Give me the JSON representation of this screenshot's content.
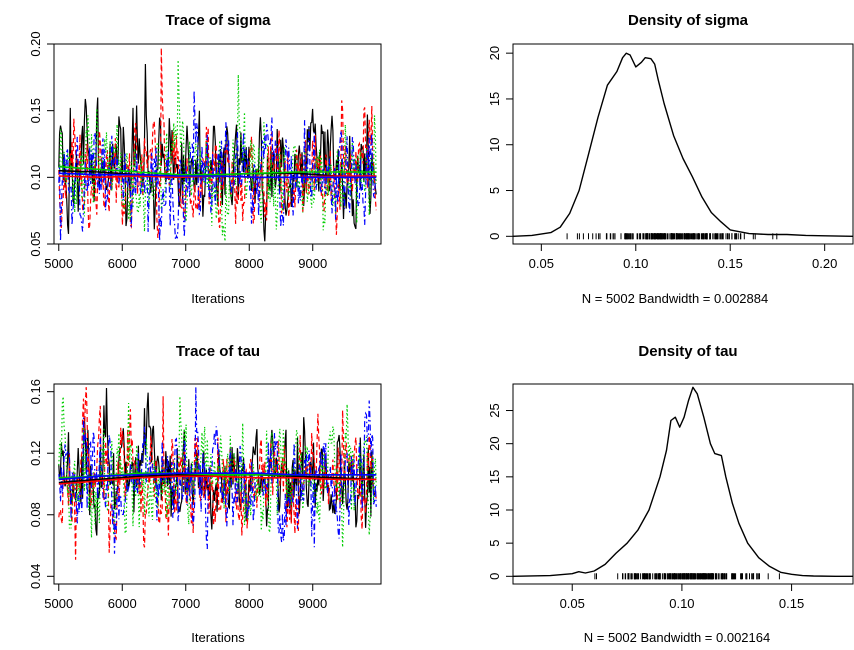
{
  "chart_data": [
    {
      "type": "line",
      "title": "Trace of sigma",
      "xlabel": "Iterations",
      "ylabel": "",
      "xlim": [
        5000,
        10000
      ],
      "ylim": [
        0.05,
        0.2
      ],
      "xticks": [
        "5000",
        "6000",
        "7000",
        "8000",
        "9000"
      ],
      "yticks": [
        "0.05",
        "0.10",
        "0.15",
        "0.20"
      ],
      "n_iterations": 5000,
      "series": [
        {
          "color": "#000000",
          "dash": "solid",
          "mean": 0.104,
          "sd": 0.02,
          "max": 0.185,
          "smooth": [
            0.105,
            0.104,
            0.102,
            0.101,
            0.102,
            0.103,
            0.103,
            0.101,
            0.1
          ]
        },
        {
          "color": "#ff0000",
          "dash": "dashed",
          "mean": 0.101,
          "sd": 0.02,
          "max": 0.197,
          "smooth": [
            0.101,
            0.1,
            0.101,
            0.1,
            0.101,
            0.1,
            0.1,
            0.101,
            0.101
          ]
        },
        {
          "color": "#00cd00",
          "dash": "dotted",
          "mean": 0.104,
          "sd": 0.02,
          "max": 0.188,
          "smooth": [
            0.108,
            0.106,
            0.104,
            0.102,
            0.102,
            0.103,
            0.104,
            0.104,
            0.104
          ]
        },
        {
          "color": "#0000ff",
          "dash": "dashdot",
          "mean": 0.102,
          "sd": 0.019,
          "max": 0.165,
          "smooth": [
            0.103,
            0.102,
            0.102,
            0.101,
            0.101,
            0.1,
            0.1,
            0.1,
            0.1
          ]
        }
      ]
    },
    {
      "type": "area",
      "title": "Density of sigma",
      "xlabel": "N = 5002   Bandwidth = 0.002884",
      "xlim": [
        0.035,
        0.215
      ],
      "ylim": [
        0,
        21
      ],
      "xticks": [
        "0.05",
        "0.10",
        "0.15",
        "0.20"
      ],
      "yticks": [
        "0",
        "5",
        "10",
        "15",
        "20"
      ],
      "x": [
        0.03,
        0.045,
        0.055,
        0.06,
        0.065,
        0.07,
        0.075,
        0.08,
        0.085,
        0.09,
        0.093,
        0.095,
        0.097,
        0.1,
        0.103,
        0.105,
        0.108,
        0.11,
        0.112,
        0.115,
        0.12,
        0.125,
        0.13,
        0.135,
        0.14,
        0.145,
        0.15,
        0.16,
        0.17,
        0.18,
        0.19,
        0.2,
        0.215
      ],
      "y": [
        0,
        0.1,
        0.4,
        1.0,
        2.5,
        5.0,
        9.0,
        13.0,
        16.5,
        18.0,
        19.5,
        20.0,
        19.8,
        18.5,
        19.0,
        19.5,
        19.4,
        18.8,
        17.0,
        14.5,
        11.0,
        8.5,
        6.5,
        4.3,
        2.6,
        1.6,
        0.7,
        0.3,
        0.2,
        0.2,
        0.1,
        0.05,
        0
      ],
      "rug_range": [
        0.055,
        0.185
      ]
    },
    {
      "type": "line",
      "title": "Trace of tau",
      "xlabel": "Iterations",
      "ylabel": "",
      "xlim": [
        5000,
        10000
      ],
      "ylim": [
        0.035,
        0.165
      ],
      "xticks": [
        "5000",
        "6000",
        "7000",
        "8000",
        "9000"
      ],
      "yticks": [
        "0.04",
        "0.08",
        "0.12",
        "0.16"
      ],
      "n_iterations": 5000,
      "series": [
        {
          "color": "#000000",
          "dash": "solid",
          "mean": 0.104,
          "sd": 0.016,
          "max": 0.15,
          "smooth": [
            0.101,
            0.103,
            0.105,
            0.106,
            0.106,
            0.106,
            0.105,
            0.104,
            0.103
          ]
        },
        {
          "color": "#ff0000",
          "dash": "dashed",
          "mean": 0.103,
          "sd": 0.017,
          "max": 0.157,
          "smooth": [
            0.1,
            0.102,
            0.104,
            0.105,
            0.105,
            0.104,
            0.104,
            0.103,
            0.103
          ]
        },
        {
          "color": "#00cd00",
          "dash": "dotted",
          "mean": 0.106,
          "sd": 0.016,
          "max": 0.157,
          "smooth": [
            0.104,
            0.105,
            0.107,
            0.107,
            0.106,
            0.106,
            0.106,
            0.106,
            0.106
          ]
        },
        {
          "color": "#0000ff",
          "dash": "dashdot",
          "mean": 0.105,
          "sd": 0.016,
          "max": 0.165,
          "smooth": [
            0.103,
            0.105,
            0.106,
            0.107,
            0.107,
            0.107,
            0.106,
            0.106,
            0.106
          ]
        }
      ]
    },
    {
      "type": "area",
      "title": "Density of tau",
      "xlabel": "N = 5002   Bandwidth = 0.002164",
      "xlim": [
        0.023,
        0.178
      ],
      "ylim": [
        0,
        29
      ],
      "xticks": [
        "0.05",
        "0.10",
        "0.15"
      ],
      "yticks": [
        "0",
        "5",
        "10",
        "15",
        "20",
        "25"
      ],
      "x": [
        0.02,
        0.04,
        0.05,
        0.053,
        0.056,
        0.06,
        0.065,
        0.07,
        0.075,
        0.08,
        0.085,
        0.09,
        0.093,
        0.095,
        0.097,
        0.099,
        0.101,
        0.103,
        0.105,
        0.107,
        0.11,
        0.113,
        0.115,
        0.118,
        0.12,
        0.123,
        0.126,
        0.13,
        0.135,
        0.14,
        0.145,
        0.15,
        0.155,
        0.16,
        0.17,
        0.18
      ],
      "y": [
        0,
        0.1,
        0.4,
        0.7,
        0.5,
        0.8,
        1.8,
        3.5,
        5.0,
        7.0,
        10.0,
        15.0,
        19.0,
        23.5,
        24.0,
        22.5,
        24.0,
        26.5,
        28.5,
        27.5,
        24.0,
        20.0,
        18.5,
        18.2,
        15.0,
        11.0,
        8.0,
        5.0,
        2.8,
        1.5,
        0.6,
        0.3,
        0.1,
        0.05,
        0,
        0
      ],
      "rug_range": [
        0.05,
        0.152
      ]
    }
  ]
}
